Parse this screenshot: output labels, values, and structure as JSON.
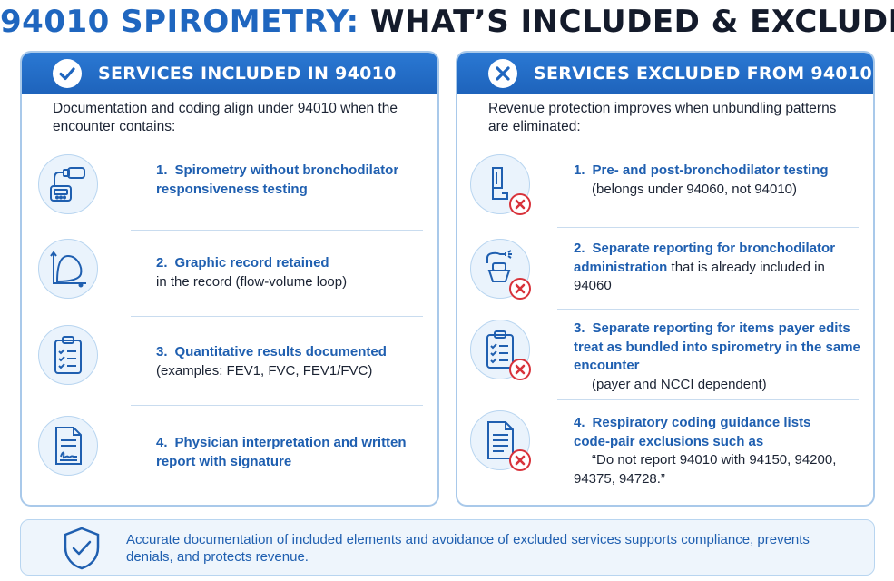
{
  "title": {
    "part1": "94010 SPIROMETRY:",
    "part2": "WHAT’S INCLUDED & EXCLUDED"
  },
  "included": {
    "header": "SERVICES INCLUDED IN 94010",
    "intro": "Documentation and coding align under 94010 when the encounter contains:",
    "items": [
      {
        "num": "1.",
        "bold": "Spirometry without bronchodilator responsiveness testing",
        "rest": "",
        "icon": "spirometer-icon"
      },
      {
        "num": "2.",
        "bold": "Graphic record retained",
        "rest": "in the record (flow-volume loop)",
        "icon": "flow-volume-graph-icon"
      },
      {
        "num": "3.",
        "bold": "Quantitative results documented",
        "rest": "(examples: FEV1, FVC, FEV1/FVC)",
        "icon": "clipboard-checklist-icon"
      },
      {
        "num": "4.",
        "bold": "Physician interpretation and written report with signature",
        "rest": "",
        "icon": "signed-document-icon"
      }
    ]
  },
  "excluded": {
    "header": "SERVICES EXCLUDED FROM 94010",
    "intro": "Revenue protection improves when unbundling patterns are eliminated:",
    "items": [
      {
        "num": "1.",
        "bold": "Pre- and post-bronchodilator testing",
        "rest": "(belongs under 94060, not 94010)",
        "icon": "inhaler-icon"
      },
      {
        "num": "2.",
        "bold": "Separate reporting for bronchodilator administration",
        "rest": "that is already included in 94060",
        "icon": "nebulizer-icon"
      },
      {
        "num": "3.",
        "bold": "Separate reporting for items payer edits treat as bundled into spirometry in the same encounter",
        "rest": "(payer and NCCI dependent)",
        "icon": "clipboard-checklist-icon"
      },
      {
        "num": "4.",
        "bold": "Respiratory coding guidance lists code-pair exclusions such as",
        "rest": "“Do not report 94010 with 94150, 94200, 94375, 94728.”",
        "icon": "document-icon"
      }
    ]
  },
  "footer": {
    "text": "Accurate documentation of included elements and avoidance of excluded services supports compliance, prevents denials, and protects revenue.",
    "icon": "shield-check-icon"
  },
  "colors": {
    "brand_blue": "#1f66bf",
    "header_blue": "#2470cb",
    "exclude_red": "#d8323a",
    "panel_border": "#a9c9ea"
  }
}
